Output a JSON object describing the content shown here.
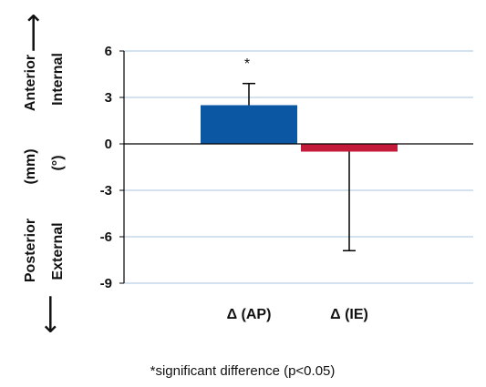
{
  "chart_data": {
    "type": "bar",
    "categories": [
      "Δ (AP)",
      "Δ (IE)"
    ],
    "series": [
      {
        "values": [
          2.5,
          -0.5
        ],
        "error_upper": [
          3.9,
          null
        ],
        "error_lower": [
          null,
          -6.9
        ],
        "colors": [
          "#0b57a4",
          "#c41a3a"
        ]
      }
    ],
    "yticks": [
      "6",
      "3",
      "0",
      "-3",
      "-6",
      "-9"
    ],
    "ylim": [
      -9,
      6
    ],
    "grid": true,
    "y_labels_outer": {
      "top": "Anterior",
      "middle": "(mm)",
      "bottom": "Posterior"
    },
    "y_labels_inner": {
      "top": "Internal",
      "middle": "(°)",
      "bottom": "External"
    },
    "arrows": {
      "up": "⟶",
      "down": "⟶"
    },
    "annotations": [
      {
        "category": "Δ (AP)",
        "text": "*"
      }
    ],
    "footnote": "*significant difference (p<0.05)"
  }
}
